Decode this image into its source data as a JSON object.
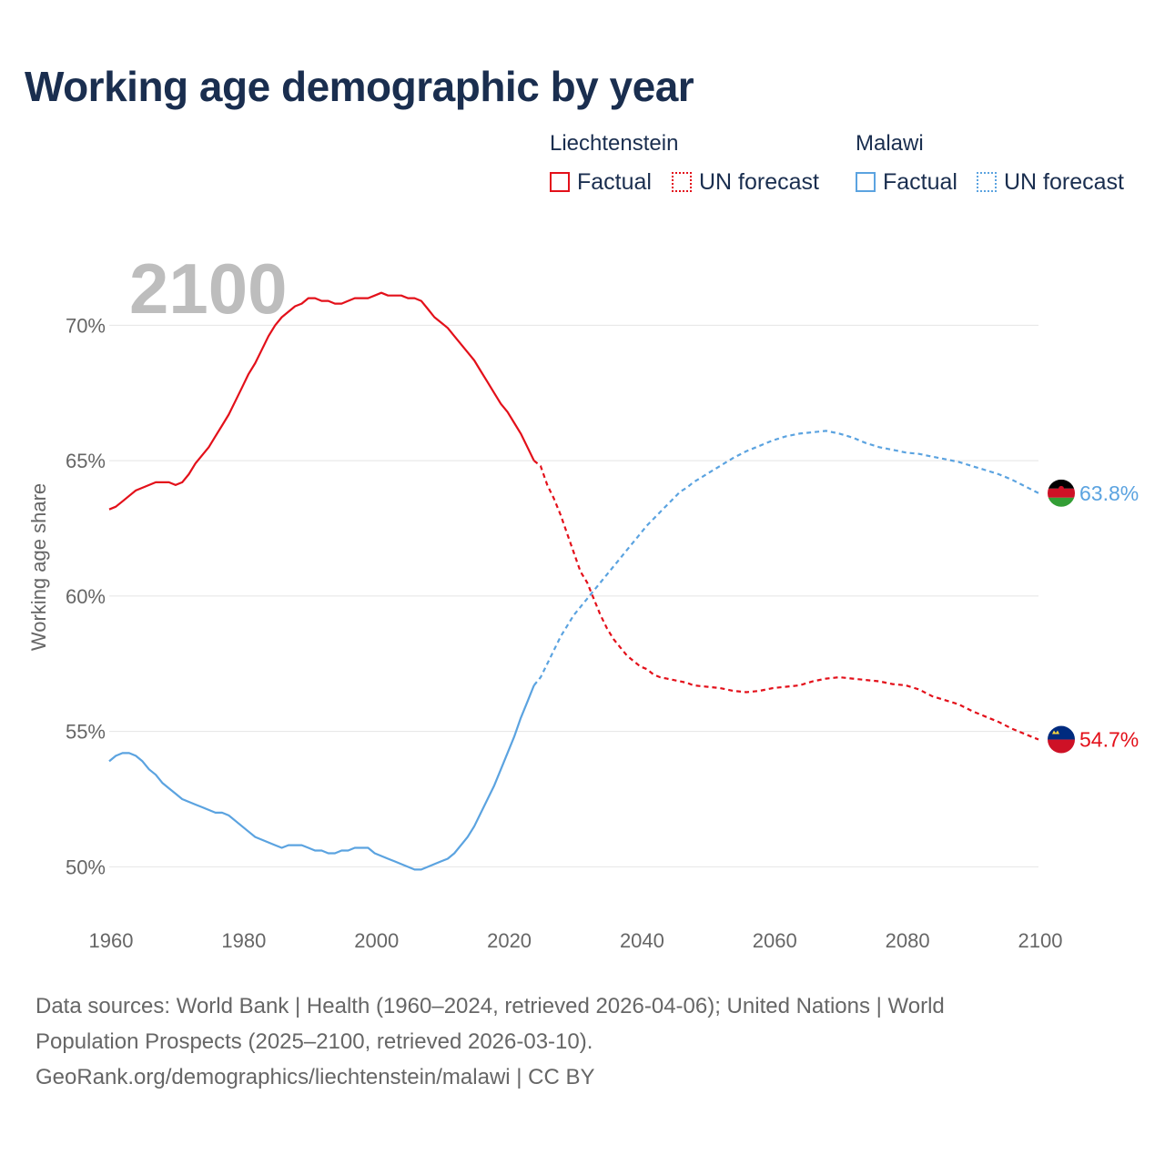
{
  "title": "Working age demographic by year",
  "legend": {
    "groups": [
      {
        "name": "Liechtenstein",
        "color": "#e3101a",
        "factual_label": "Factual",
        "forecast_label": "UN forecast"
      },
      {
        "name": "Malawi",
        "color": "#5ba3e0",
        "factual_label": "Factual",
        "forecast_label": "UN forecast"
      }
    ]
  },
  "chart_data": {
    "type": "line",
    "title": "Working age demographic by year",
    "xlabel": "",
    "ylabel": "Working age share",
    "xlim": [
      1960,
      2100
    ],
    "ylim": [
      48.5,
      72.5
    ],
    "x_ticks": [
      1960,
      1980,
      2000,
      2020,
      2040,
      2060,
      2080,
      2100
    ],
    "y_ticks": [
      50,
      55,
      60,
      65,
      70
    ],
    "y_tick_labels": [
      "50%",
      "55%",
      "60%",
      "65%",
      "70%"
    ],
    "current_year_label": "2100",
    "factual_range": "1960–2024",
    "forecast_range": "2025–2100",
    "series": [
      {
        "name": "Liechtenstein",
        "color": "#e3101a",
        "end_label": "54.7%",
        "factual": [
          [
            1960,
            63.2
          ],
          [
            1961,
            63.3
          ],
          [
            1962,
            63.5
          ],
          [
            1963,
            63.7
          ],
          [
            1964,
            63.9
          ],
          [
            1965,
            64.0
          ],
          [
            1966,
            64.1
          ],
          [
            1967,
            64.2
          ],
          [
            1968,
            64.2
          ],
          [
            1969,
            64.2
          ],
          [
            1970,
            64.1
          ],
          [
            1971,
            64.2
          ],
          [
            1972,
            64.5
          ],
          [
            1973,
            64.9
          ],
          [
            1974,
            65.2
          ],
          [
            1975,
            65.5
          ],
          [
            1976,
            65.9
          ],
          [
            1977,
            66.3
          ],
          [
            1978,
            66.7
          ],
          [
            1979,
            67.2
          ],
          [
            1980,
            67.7
          ],
          [
            1981,
            68.2
          ],
          [
            1982,
            68.6
          ],
          [
            1983,
            69.1
          ],
          [
            1984,
            69.6
          ],
          [
            1985,
            70.0
          ],
          [
            1986,
            70.3
          ],
          [
            1987,
            70.5
          ],
          [
            1988,
            70.7
          ],
          [
            1989,
            70.8
          ],
          [
            1990,
            71.0
          ],
          [
            1991,
            71.0
          ],
          [
            1992,
            70.9
          ],
          [
            1993,
            70.9
          ],
          [
            1994,
            70.8
          ],
          [
            1995,
            70.8
          ],
          [
            1996,
            70.9
          ],
          [
            1997,
            71.0
          ],
          [
            1998,
            71.0
          ],
          [
            1999,
            71.0
          ],
          [
            2000,
            71.1
          ],
          [
            2001,
            71.2
          ],
          [
            2002,
            71.1
          ],
          [
            2003,
            71.1
          ],
          [
            2004,
            71.1
          ],
          [
            2005,
            71.0
          ],
          [
            2006,
            71.0
          ],
          [
            2007,
            70.9
          ],
          [
            2008,
            70.6
          ],
          [
            2009,
            70.3
          ],
          [
            2010,
            70.1
          ],
          [
            2011,
            69.9
          ],
          [
            2012,
            69.6
          ],
          [
            2013,
            69.3
          ],
          [
            2014,
            69.0
          ],
          [
            2015,
            68.7
          ],
          [
            2016,
            68.3
          ],
          [
            2017,
            67.9
          ],
          [
            2018,
            67.5
          ],
          [
            2019,
            67.1
          ],
          [
            2020,
            66.8
          ],
          [
            2021,
            66.4
          ],
          [
            2022,
            66.0
          ],
          [
            2023,
            65.5
          ],
          [
            2024,
            65.0
          ]
        ],
        "forecast": [
          [
            2024,
            65.0
          ],
          [
            2025,
            64.8
          ],
          [
            2026,
            64.1
          ],
          [
            2027,
            63.6
          ],
          [
            2028,
            63.0
          ],
          [
            2029,
            62.3
          ],
          [
            2030,
            61.6
          ],
          [
            2031,
            60.9
          ],
          [
            2032,
            60.5
          ],
          [
            2033,
            59.9
          ],
          [
            2034,
            59.3
          ],
          [
            2035,
            58.8
          ],
          [
            2036,
            58.4
          ],
          [
            2037,
            58.1
          ],
          [
            2038,
            57.8
          ],
          [
            2039,
            57.6
          ],
          [
            2040,
            57.4
          ],
          [
            2041,
            57.3
          ],
          [
            2042,
            57.1
          ],
          [
            2043,
            57.0
          ],
          [
            2044,
            56.95
          ],
          [
            2045,
            56.9
          ],
          [
            2046,
            56.85
          ],
          [
            2047,
            56.8
          ],
          [
            2048,
            56.7
          ],
          [
            2050,
            56.65
          ],
          [
            2052,
            56.6
          ],
          [
            2054,
            56.5
          ],
          [
            2056,
            56.45
          ],
          [
            2058,
            56.5
          ],
          [
            2060,
            56.6
          ],
          [
            2062,
            56.65
          ],
          [
            2064,
            56.7
          ],
          [
            2066,
            56.85
          ],
          [
            2068,
            56.95
          ],
          [
            2070,
            57.0
          ],
          [
            2072,
            56.95
          ],
          [
            2074,
            56.9
          ],
          [
            2076,
            56.85
          ],
          [
            2078,
            56.75
          ],
          [
            2080,
            56.7
          ],
          [
            2082,
            56.55
          ],
          [
            2084,
            56.3
          ],
          [
            2086,
            56.15
          ],
          [
            2088,
            56.0
          ],
          [
            2090,
            55.75
          ],
          [
            2092,
            55.55
          ],
          [
            2094,
            55.35
          ],
          [
            2096,
            55.1
          ],
          [
            2098,
            54.9
          ],
          [
            2100,
            54.7
          ]
        ]
      },
      {
        "name": "Malawi",
        "color": "#5ba3e0",
        "end_label": "63.8%",
        "factual": [
          [
            1960,
            53.9
          ],
          [
            1961,
            54.1
          ],
          [
            1962,
            54.2
          ],
          [
            1963,
            54.2
          ],
          [
            1964,
            54.1
          ],
          [
            1965,
            53.9
          ],
          [
            1966,
            53.6
          ],
          [
            1967,
            53.4
          ],
          [
            1968,
            53.1
          ],
          [
            1969,
            52.9
          ],
          [
            1970,
            52.7
          ],
          [
            1971,
            52.5
          ],
          [
            1972,
            52.4
          ],
          [
            1973,
            52.3
          ],
          [
            1974,
            52.2
          ],
          [
            1975,
            52.1
          ],
          [
            1976,
            52.0
          ],
          [
            1977,
            52.0
          ],
          [
            1978,
            51.9
          ],
          [
            1979,
            51.7
          ],
          [
            1980,
            51.5
          ],
          [
            1981,
            51.3
          ],
          [
            1982,
            51.1
          ],
          [
            1983,
            51.0
          ],
          [
            1984,
            50.9
          ],
          [
            1985,
            50.8
          ],
          [
            1986,
            50.7
          ],
          [
            1987,
            50.8
          ],
          [
            1988,
            50.8
          ],
          [
            1989,
            50.8
          ],
          [
            1990,
            50.7
          ],
          [
            1991,
            50.6
          ],
          [
            1992,
            50.6
          ],
          [
            1993,
            50.5
          ],
          [
            1994,
            50.5
          ],
          [
            1995,
            50.6
          ],
          [
            1996,
            50.6
          ],
          [
            1997,
            50.7
          ],
          [
            1998,
            50.7
          ],
          [
            1999,
            50.7
          ],
          [
            2000,
            50.5
          ],
          [
            2001,
            50.4
          ],
          [
            2002,
            50.3
          ],
          [
            2003,
            50.2
          ],
          [
            2004,
            50.1
          ],
          [
            2005,
            50.0
          ],
          [
            2006,
            49.9
          ],
          [
            2007,
            49.9
          ],
          [
            2008,
            50.0
          ],
          [
            2009,
            50.1
          ],
          [
            2010,
            50.2
          ],
          [
            2011,
            50.3
          ],
          [
            2012,
            50.5
          ],
          [
            2013,
            50.8
          ],
          [
            2014,
            51.1
          ],
          [
            2015,
            51.5
          ],
          [
            2016,
            52.0
          ],
          [
            2017,
            52.5
          ],
          [
            2018,
            53.0
          ],
          [
            2019,
            53.6
          ],
          [
            2020,
            54.2
          ],
          [
            2021,
            54.8
          ],
          [
            2022,
            55.5
          ],
          [
            2023,
            56.1
          ],
          [
            2024,
            56.7
          ]
        ],
        "forecast": [
          [
            2024,
            56.7
          ],
          [
            2025,
            57.0
          ],
          [
            2026,
            57.5
          ],
          [
            2027,
            58.0
          ],
          [
            2028,
            58.5
          ],
          [
            2029,
            58.9
          ],
          [
            2030,
            59.3
          ],
          [
            2031,
            59.6
          ],
          [
            2032,
            59.9
          ],
          [
            2033,
            60.2
          ],
          [
            2034,
            60.5
          ],
          [
            2035,
            60.8
          ],
          [
            2036,
            61.1
          ],
          [
            2037,
            61.4
          ],
          [
            2038,
            61.7
          ],
          [
            2039,
            62.0
          ],
          [
            2040,
            62.3
          ],
          [
            2041,
            62.6
          ],
          [
            2042,
            62.85
          ],
          [
            2043,
            63.1
          ],
          [
            2044,
            63.35
          ],
          [
            2045,
            63.6
          ],
          [
            2046,
            63.85
          ],
          [
            2047,
            64.0
          ],
          [
            2048,
            64.2
          ],
          [
            2050,
            64.5
          ],
          [
            2052,
            64.8
          ],
          [
            2054,
            65.1
          ],
          [
            2056,
            65.35
          ],
          [
            2058,
            65.55
          ],
          [
            2060,
            65.75
          ],
          [
            2062,
            65.9
          ],
          [
            2064,
            66.0
          ],
          [
            2066,
            66.05
          ],
          [
            2068,
            66.1
          ],
          [
            2070,
            66.0
          ],
          [
            2072,
            65.85
          ],
          [
            2074,
            65.65
          ],
          [
            2076,
            65.5
          ],
          [
            2078,
            65.4
          ],
          [
            2080,
            65.3
          ],
          [
            2082,
            65.25
          ],
          [
            2084,
            65.15
          ],
          [
            2086,
            65.05
          ],
          [
            2088,
            64.95
          ],
          [
            2090,
            64.8
          ],
          [
            2092,
            64.65
          ],
          [
            2094,
            64.5
          ],
          [
            2096,
            64.3
          ],
          [
            2098,
            64.05
          ],
          [
            2100,
            63.8
          ]
        ]
      }
    ]
  },
  "footer": {
    "line1": "Data sources: World Bank | Health (1960–2024, retrieved 2026-04-06); United Nations | World",
    "line2": "Population Prospects (2025–2100, retrieved 2026-03-10).",
    "line3": "GeoRank.org/demographics/liechtenstein/malawi | CC BY"
  }
}
